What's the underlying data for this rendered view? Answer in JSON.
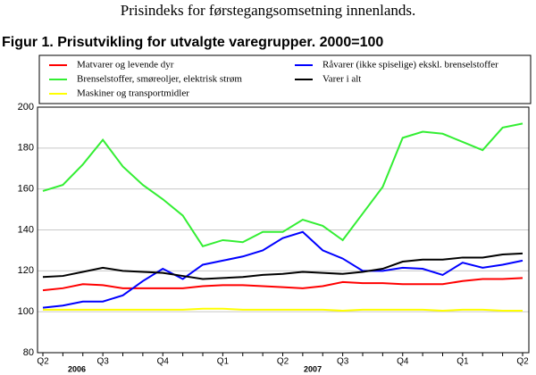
{
  "header": "Prisindeks for førstegangsomsetning innenlands.",
  "chart_data": {
    "type": "line",
    "title": "Figur 1. Prisutvikling for utvalgte varegrupper. 2000=100",
    "categories": [
      "Q2",
      null,
      null,
      "Q3",
      null,
      null,
      "Q4",
      null,
      null,
      "Q1",
      null,
      null,
      "Q2",
      null,
      null,
      "Q3",
      null,
      null,
      "Q4",
      null,
      null,
      "Q1",
      null,
      null,
      "Q2"
    ],
    "years": [
      "2006",
      "2007"
    ],
    "ylim": [
      80,
      200
    ],
    "yticks": [
      80,
      100,
      120,
      140,
      160,
      180,
      200
    ],
    "grid": true,
    "series": [
      {
        "name": "Matvarer og levende dyr",
        "color": "#ff0000",
        "values": [
          110.5,
          111.5,
          113.5,
          113,
          111.5,
          111.5,
          111.5,
          111.5,
          112.5,
          113,
          113,
          112.5,
          112,
          111.5,
          112.5,
          114.5,
          114,
          114,
          113.5,
          113.5,
          113.5,
          115,
          116,
          116,
          116.5
        ]
      },
      {
        "name": "Råvarer (ikke spiselige) ekskl. brenselstoffer",
        "color": "#0000ff",
        "values": [
          102,
          103,
          105,
          105,
          108,
          115,
          121,
          116,
          123,
          125,
          127,
          130,
          136,
          139,
          130,
          126,
          120,
          120,
          121.5,
          121,
          118,
          124,
          121.5,
          123,
          125
        ]
      },
      {
        "name": "Brenselstoffer, smøreoljer, elektrisk strøm",
        "color": "#33ee33",
        "values": [
          159,
          162,
          172,
          184,
          171,
          162,
          155,
          147,
          132,
          135,
          134,
          139,
          139,
          145,
          142,
          135,
          148,
          161,
          185,
          188,
          187,
          183,
          179,
          190,
          192
        ]
      },
      {
        "name": "Varer i alt",
        "color": "#000000",
        "values": [
          117,
          117.5,
          119.5,
          121.5,
          120,
          119.5,
          119,
          117.5,
          116,
          116.5,
          117,
          118,
          118.5,
          119.5,
          119,
          118.5,
          119.5,
          121,
          124.5,
          125.5,
          125.5,
          126.5,
          126.5,
          128,
          128.5
        ]
      },
      {
        "name": "Maskiner og transportmidler",
        "color": "#ffff00",
        "values": [
          101,
          101,
          101,
          101,
          101,
          101,
          101,
          101,
          101.5,
          101.5,
          101,
          101,
          101,
          101,
          101,
          100.5,
          101,
          101,
          101,
          101,
          100.5,
          101,
          101,
          100.5,
          100.5
        ]
      }
    ]
  }
}
